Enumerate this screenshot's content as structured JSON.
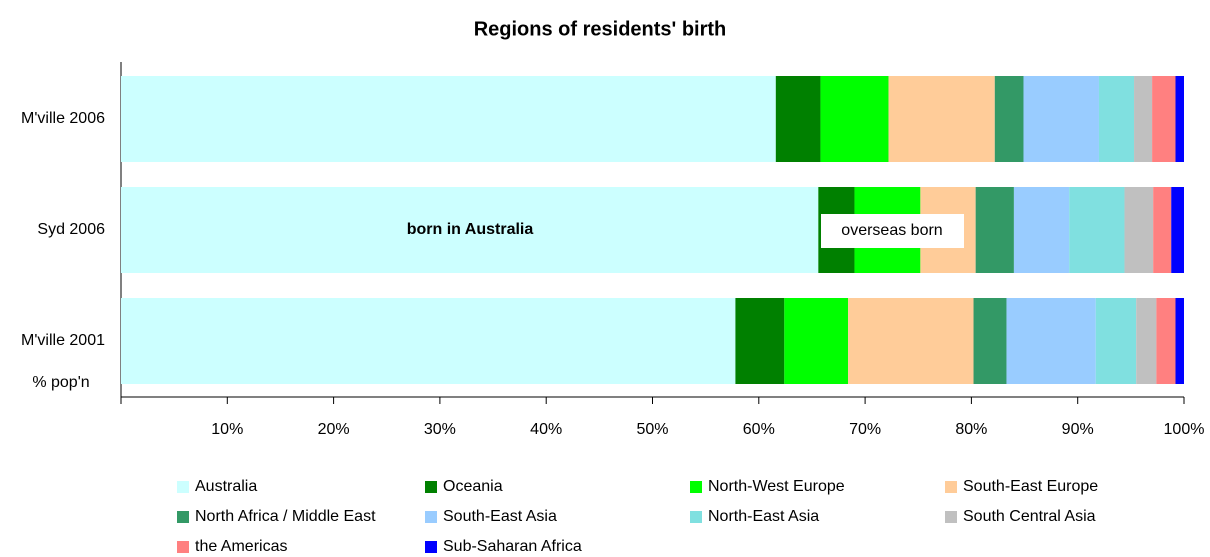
{
  "chart_data": {
    "type": "stacked_barh",
    "title": "Regions of residents' birth",
    "axis_note": "% pop'n",
    "annotations": [
      "born in Australia",
      "overseas born"
    ],
    "categories": [
      "M'ville 2006",
      "Syd 2006",
      "M'ville 2001"
    ],
    "series": [
      {
        "name": "Australia",
        "color": "#ccffff",
        "values": [
          61.6,
          65.6,
          57.8
        ]
      },
      {
        "name": "Oceania",
        "color": "#008000",
        "values": [
          4.2,
          3.4,
          4.6
        ]
      },
      {
        "name": "North-West Europe",
        "color": "#00ff00",
        "values": [
          6.4,
          6.2,
          6.0
        ]
      },
      {
        "name": "South-East Europe",
        "color": "#ffcc99",
        "values": [
          10.0,
          5.2,
          11.8
        ]
      },
      {
        "name": "North Africa / Middle East",
        "color": "#339966",
        "values": [
          2.7,
          3.6,
          3.1
        ]
      },
      {
        "name": "South-East Asia",
        "color": "#99ccff",
        "values": [
          7.1,
          5.2,
          8.4
        ]
      },
      {
        "name": "North-East Asia",
        "color": "#80e0e0",
        "values": [
          3.3,
          5.2,
          3.8
        ]
      },
      {
        "name": "South Central Asia",
        "color": "#c0c0c0",
        "values": [
          1.7,
          2.7,
          1.9
        ]
      },
      {
        "name": "the Americas",
        "color": "#ff8080",
        "values": [
          2.2,
          1.7,
          1.8
        ]
      },
      {
        "name": "Sub-Saharan Africa",
        "color": "#0000ff",
        "values": [
          0.8,
          1.2,
          0.8
        ]
      }
    ],
    "xlim": [
      0,
      100
    ],
    "xticks": [
      {
        "value": 10,
        "label": "10%"
      },
      {
        "value": 20,
        "label": "20%"
      },
      {
        "value": 30,
        "label": "30%"
      },
      {
        "value": 40,
        "label": "40%"
      },
      {
        "value": 50,
        "label": "50%"
      },
      {
        "value": 60,
        "label": "60%"
      },
      {
        "value": 70,
        "label": "70%"
      },
      {
        "value": 80,
        "label": "80%"
      },
      {
        "value": 90,
        "label": "90%"
      },
      {
        "value": 100,
        "label": "100%"
      }
    ],
    "grid": false
  }
}
